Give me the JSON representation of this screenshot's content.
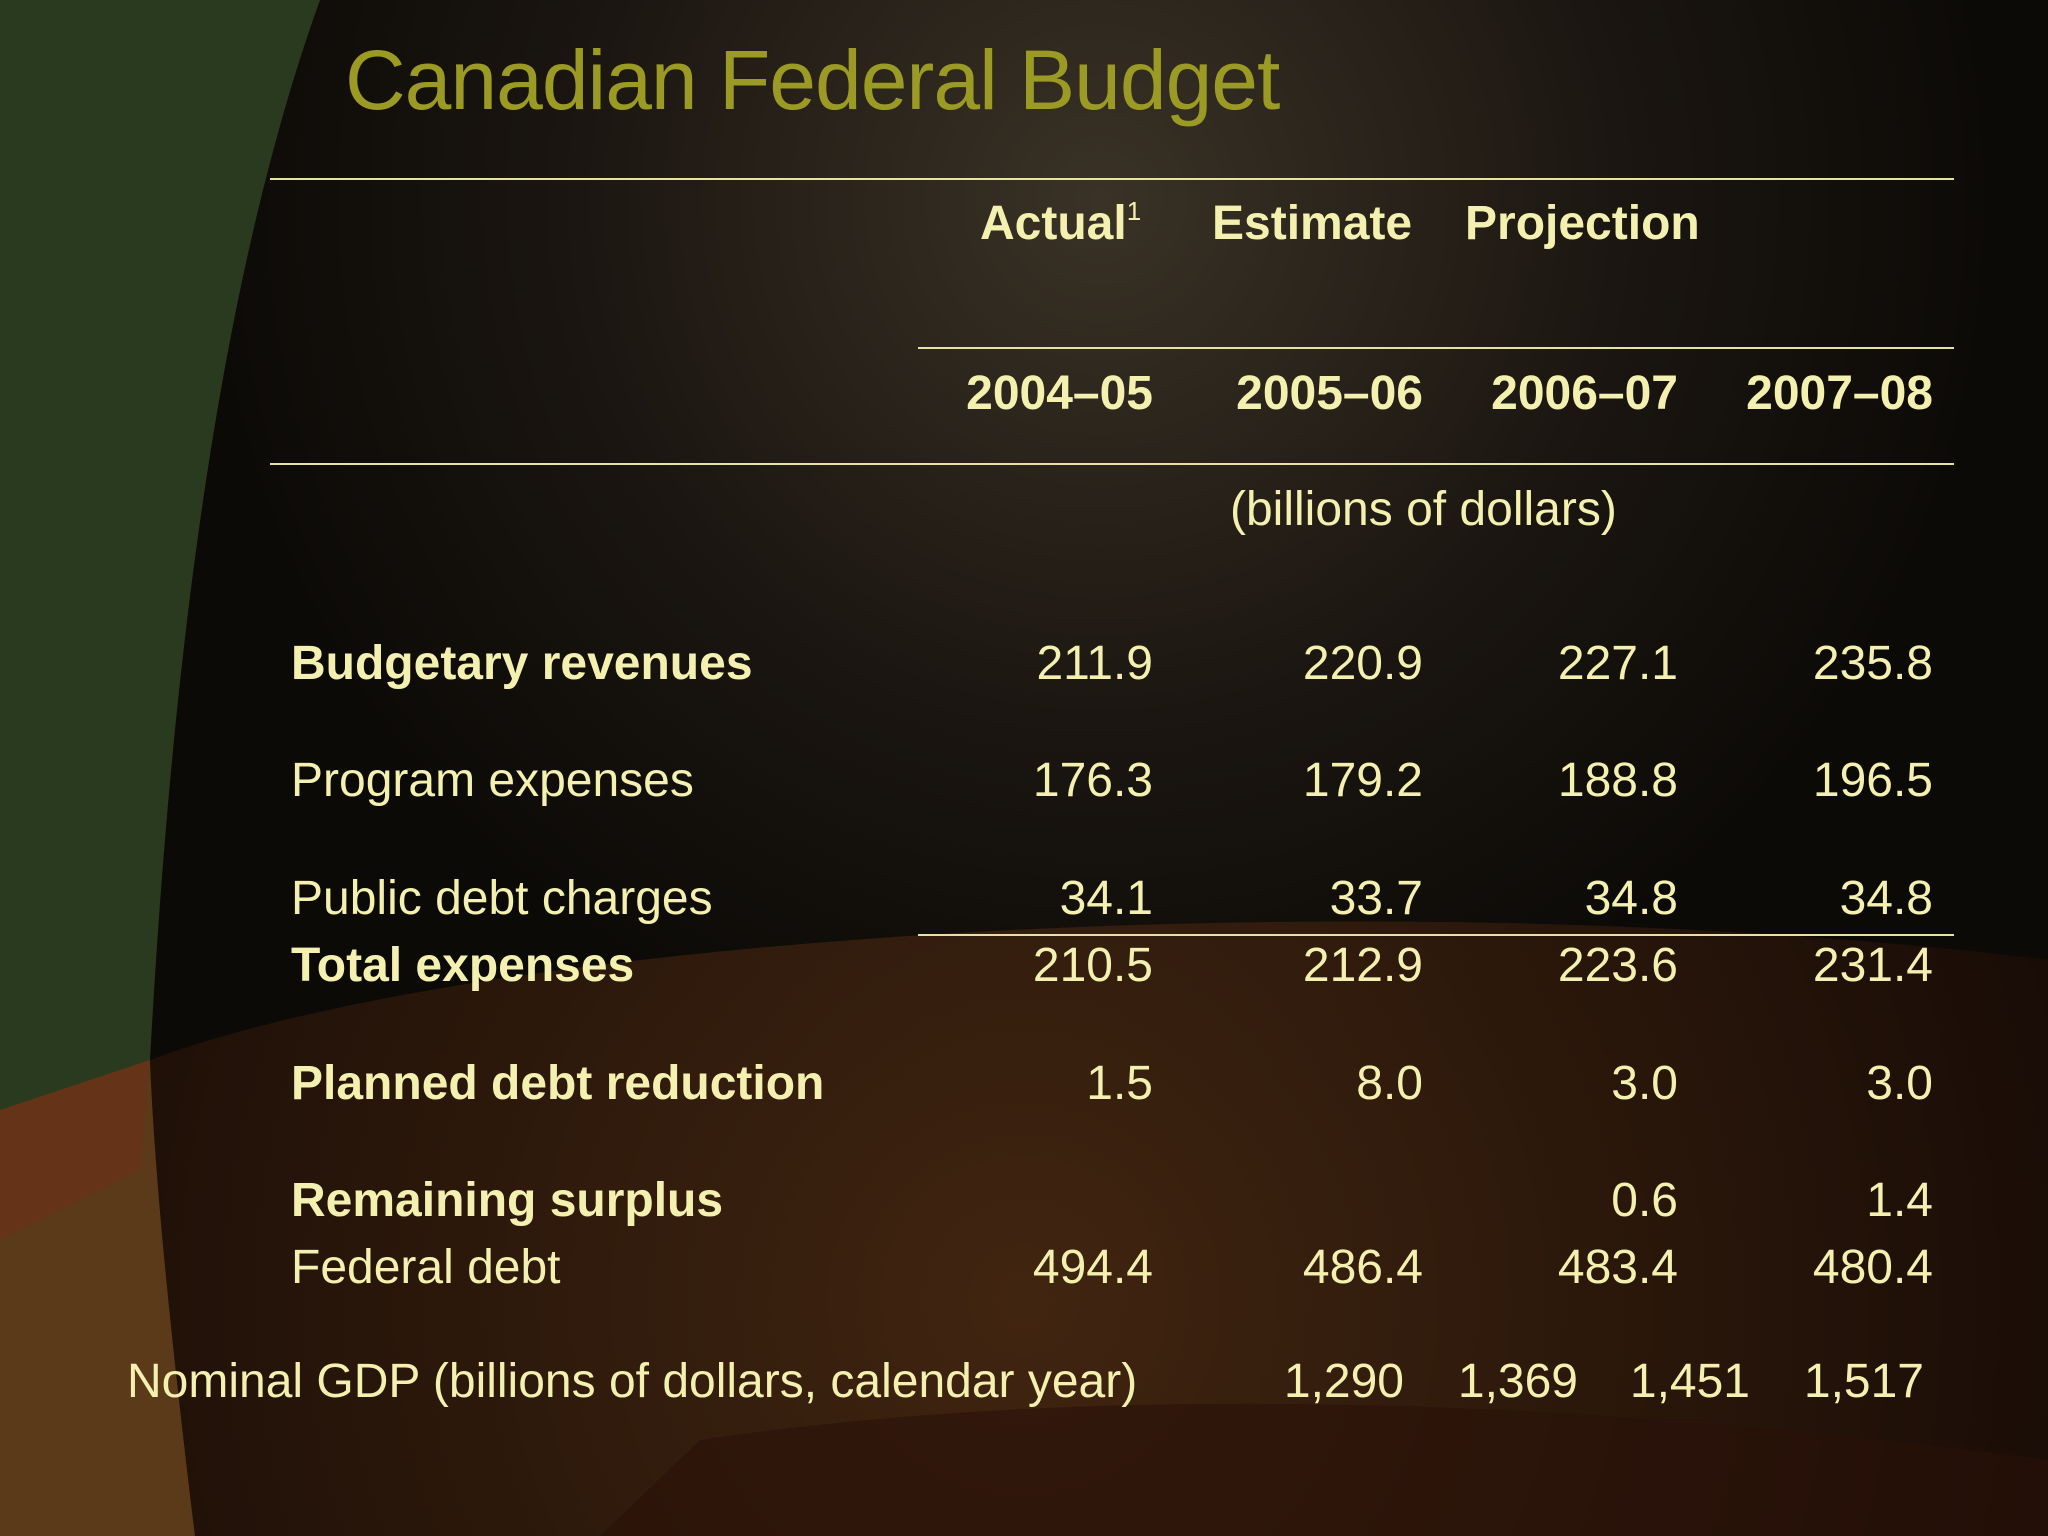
{
  "title": "Canadian Federal Budget",
  "header": {
    "groups": [
      "Actual",
      "Estimate",
      "Projection"
    ],
    "actual_footnote": "1",
    "years": [
      "2004–05",
      "2005–06",
      "2006–07",
      "2007–08"
    ],
    "units": "(billions of dollars)"
  },
  "rows": [
    {
      "label": "Budgetary revenues",
      "values": [
        "211.9",
        "220.9",
        "227.1",
        "235.8"
      ]
    },
    {
      "label": "Program expenses",
      "values": [
        "176.3",
        "179.2",
        "188.8",
        "196.5"
      ]
    },
    {
      "label": "Public debt charges",
      "values": [
        "34.1",
        "33.7",
        "34.8",
        "34.8"
      ]
    },
    {
      "label": "Total expenses",
      "values": [
        "210.5",
        "212.9",
        "223.6",
        "231.4"
      ]
    },
    {
      "label": "Planned debt reduction",
      "values": [
        "1.5",
        "8.0",
        "3.0",
        "3.0"
      ]
    },
    {
      "label": "Remaining surplus",
      "values": [
        "",
        "",
        "0.6",
        "1.4"
      ]
    },
    {
      "label": "Federal debt",
      "values": [
        "494.4",
        "486.4",
        "483.4",
        "480.4"
      ]
    }
  ],
  "gdp": {
    "label": "Nominal GDP (billions of dollars, calendar year)",
    "values": [
      "1,290",
      "1,369",
      "1,451",
      "1,517"
    ]
  },
  "colors": {
    "title": "#9a9a24",
    "text": "#f4f0b0",
    "rule": "#e6e2a6",
    "background": "#0f0c08"
  }
}
